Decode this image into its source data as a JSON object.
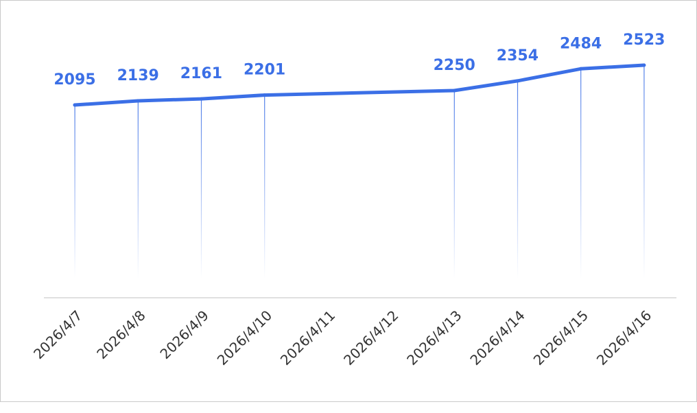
{
  "colors": {
    "line": "#3b6fe6",
    "labels": "#3b6fe6",
    "axis": "#d6d6d6",
    "ticks": "#333333"
  },
  "chart_data": {
    "type": "line",
    "title": "",
    "xlabel": "",
    "ylabel": "",
    "grid": false,
    "legend": "none",
    "categories": [
      "2026/4/7",
      "2026/4/8",
      "2026/4/9",
      "2026/4/10",
      "2026/4/11",
      "2026/4/12",
      "2026/4/13",
      "2026/4/14",
      "2026/4/15",
      "2026/4/16"
    ],
    "series": [
      {
        "values": [
          2095,
          2139,
          2161,
          2201,
          null,
          null,
          2250,
          2354,
          2484,
          2523
        ],
        "data_labels": [
          "2095",
          "2139",
          "2161",
          "2201",
          "",
          "",
          "2250",
          "2354",
          "2484",
          "2523"
        ]
      }
    ]
  }
}
